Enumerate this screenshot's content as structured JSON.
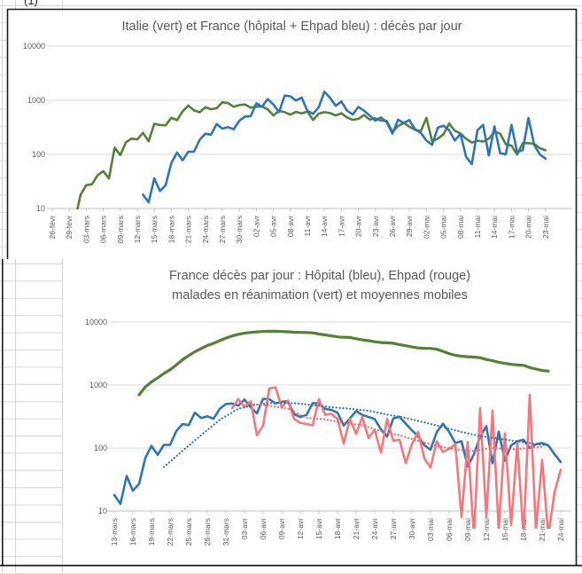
{
  "page": {
    "corner_note": "(1)"
  },
  "colors": {
    "green": "#548235",
    "blue": "#2e75b6",
    "red": "#f4777c",
    "red_dotted": "#ef676d",
    "gridline": "#d9d9d9",
    "axis": "#bfbfbf",
    "text": "#595959",
    "sheet_grid": "#d6d6d6",
    "border": "#1a1a1a"
  },
  "chart_data": [
    {
      "type": "line",
      "title": "Italie (vert) et France (hôpital + Ehpad bleu) : décès par jour",
      "xlabel": "",
      "ylabel": "",
      "y_scale": "log",
      "ylim": [
        10,
        10000
      ],
      "grid": true,
      "legend": "none (colors named in title)",
      "y_tick_labels": [
        "10000",
        "1000",
        "100",
        "10"
      ],
      "x_tick_labels": [
        "26-févr",
        "29-févr",
        "03-mars",
        "06-mars",
        "09-mars",
        "12-mars",
        "15-mars",
        "18-mars",
        "21-mars",
        "24-mars",
        "27-mars",
        "30-mars",
        "02-avr",
        "05-avr",
        "08-avr",
        "11-avr",
        "14-avr",
        "17-avr",
        "20-avr",
        "23-avr",
        "26-avr",
        "29-avr",
        "02-mai",
        "05-mai",
        "08-mai",
        "11-mai",
        "14-mai",
        "17-mai",
        "20-mai",
        "23-mai"
      ],
      "x_day0_label": "26-févr",
      "series": [
        {
          "name": "Italie décès par jour",
          "color_key": "green",
          "style": "solid",
          "width": 2.6,
          "start": 4,
          "values": [
            6,
            18,
            27,
            28,
            41,
            49,
            36,
            133,
            97,
            168,
            196,
            189,
            250,
            175,
            368,
            349,
            345,
            475,
            427,
            627,
            793,
            651,
            601,
            743,
            683,
            712,
            919,
            889,
            756,
            812,
            837,
            727,
            760,
            766,
            681,
            525,
            636,
            604,
            542,
            610,
            570,
            619,
            431,
            566,
            602,
            578,
            525,
            575,
            482,
            433,
            454,
            534,
            437,
            464,
            420,
            415,
            260,
            333,
            382,
            323,
            285,
            269,
            474,
            174,
            195,
            236,
            369,
            274,
            243,
            194,
            165,
            179,
            172,
            195,
            262,
            242,
            153,
            145,
            99,
            162,
            161,
            156,
            130,
            119
          ]
        },
        {
          "name": "France hôpital + Ehpad décès par jour",
          "color_key": "blue",
          "style": "solid",
          "width": 2.6,
          "start": 16,
          "values": [
            18,
            13,
            36,
            21,
            27,
            69,
            108,
            78,
            112,
            112,
            186,
            240,
            231,
            365,
            299,
            319,
            292,
            418,
            499,
            509,
            880,
            760,
            1053,
            833,
            605,
            1220,
            1180,
            987,
            1120,
            635,
            561,
            743,
            1438,
            1110,
            792,
            950,
            642,
            547,
            754,
            640,
            520,
            420,
            480,
            390,
            242,
            437,
            380,
            430,
            289,
            250,
            180,
            150,
            310,
            340,
            280,
            180,
            240,
            90,
            66,
            280,
            350,
            95,
            330,
            105,
            100,
            350,
            110,
            120,
            470,
            150,
            100,
            83
          ]
        }
      ]
    },
    {
      "type": "line",
      "title": "France décès par jour : Hôpital (bleu), Ehpad (rouge) malades en réanimation (vert) et moyennes mobiles",
      "title_lines": [
        "France décès par jour : Hôpital (bleu), Ehpad (rouge)",
        "malades en réanimation (vert) et moyennes mobiles"
      ],
      "xlabel": "",
      "ylabel": "",
      "y_scale": "log",
      "ylim": [
        10,
        10000
      ],
      "grid": true,
      "legend": "none (colors named in title)",
      "y_tick_labels": [
        "10000",
        "1000",
        "100",
        "10"
      ],
      "x_tick_labels": [
        "13-mars",
        "16-mars",
        "19-mars",
        "22-mars",
        "25-mars",
        "28-mars",
        "31-mars",
        "03-avr",
        "06-avr",
        "09-avr",
        "12-avr",
        "15-avr",
        "18-avr",
        "21-avr",
        "24-avr",
        "27-avr",
        "30-avr",
        "03-mai",
        "06-mai",
        "09-mai",
        "12-mai",
        "15-mai",
        "18-mai",
        "21-mai",
        "24-mai"
      ],
      "x_day0_label": "13-mars",
      "series": [
        {
          "name": "Malades en réanimation",
          "color_key": "green",
          "style": "solid",
          "width": 3.2,
          "start": 4,
          "values": [
            699,
            931,
            1122,
            1297,
            1525,
            1746,
            2082,
            2516,
            2935,
            3375,
            3787,
            4236,
            4592,
            5056,
            5565,
            6017,
            6399,
            6662,
            6838,
            6978,
            7072,
            7131,
            7148,
            7066,
            7004,
            6883,
            6845,
            6821,
            6730,
            6457,
            6248,
            6027,
            5833,
            5744,
            5683,
            5433,
            5218,
            5053,
            4870,
            4725,
            4682,
            4608,
            4387,
            4207,
            4019,
            3878,
            3827,
            3819,
            3696,
            3430,
            3147,
            2961,
            2868,
            2812,
            2776,
            2712,
            2542,
            2428,
            2299,
            2203,
            2132,
            2087,
            2053,
            1894,
            1794,
            1701,
            1665
          ]
        },
        {
          "name": "Décès hôpital",
          "color_key": "blue",
          "style": "solid",
          "width": 2.6,
          "start": 0,
          "values": [
            18,
            13,
            36,
            21,
            27,
            69,
            108,
            78,
            112,
            112,
            186,
            240,
            231,
            365,
            299,
            319,
            292,
            418,
            499,
            509,
            471,
            588,
            441,
            357,
            605,
            597,
            511,
            542,
            554,
            345,
            310,
            335,
            514,
            513,
            417,
            405,
            364,
            227,
            295,
            387,
            336,
            311,
            288,
            198,
            152,
            295,
            313,
            243,
            191,
            154,
            111,
            94,
            178,
            243,
            181,
            120,
            128,
            51,
            80,
            151,
            222,
            57,
            181,
            63,
            110,
            128,
            135,
            100,
            115,
            120,
            110,
            80,
            60
          ]
        },
        {
          "name": "Décès Ehpad",
          "color_key": "red",
          "style": "solid",
          "width": 2.6,
          "start": 19,
          "values": [
            430,
            600,
            450,
            550,
            160,
            228,
            880,
            920,
            448,
            566,
            290,
            251,
            240,
            229,
            597,
            336,
            350,
            290,
            118,
            290,
            168,
            310,
            144,
            195,
            85,
            290,
            130,
            135,
            58,
            115,
            180,
            69,
            49,
            128,
            87,
            97,
            115,
            8,
            125,
            4,
            430,
            8,
            390,
            5,
            170,
            6,
            120,
            4,
            700,
            5,
            65,
            4,
            20,
            45
          ]
        },
        {
          "name": "Moyenne mobile hôpital",
          "color_key": "blue",
          "style": "dotted",
          "width": 2.2,
          "points": [
            [
              8,
              50
            ],
            [
              11,
              90
            ],
            [
              14,
              160
            ],
            [
              17,
              280
            ],
            [
              20,
              420
            ],
            [
              23,
              490
            ],
            [
              26,
              525
            ],
            [
              29,
              515
            ],
            [
              32,
              480
            ],
            [
              35,
              445
            ],
            [
              38,
              420
            ],
            [
              41,
              390
            ],
            [
              44,
              340
            ],
            [
              47,
              300
            ],
            [
              50,
              255
            ],
            [
              53,
              215
            ],
            [
              56,
              180
            ],
            [
              59,
              155
            ],
            [
              62,
              140
            ],
            [
              65,
              128
            ],
            [
              68,
              115
            ],
            [
              70,
              110
            ]
          ]
        },
        {
          "name": "Moyenne mobile Ehpad",
          "color_key": "red_dotted",
          "style": "dotted",
          "width": 2.2,
          "points": [
            [
              22,
              500
            ],
            [
              25,
              470
            ],
            [
              28,
              420
            ],
            [
              31,
              300
            ],
            [
              34,
              285
            ],
            [
              37,
              250
            ],
            [
              40,
              230
            ],
            [
              43,
              185
            ],
            [
              46,
              160
            ],
            [
              49,
              130
            ],
            [
              52,
              108
            ],
            [
              55,
              95
            ],
            [
              58,
              90
            ],
            [
              61,
              100
            ],
            [
              64,
              95
            ],
            [
              67,
              100
            ],
            [
              69,
              105
            ]
          ]
        }
      ]
    }
  ]
}
